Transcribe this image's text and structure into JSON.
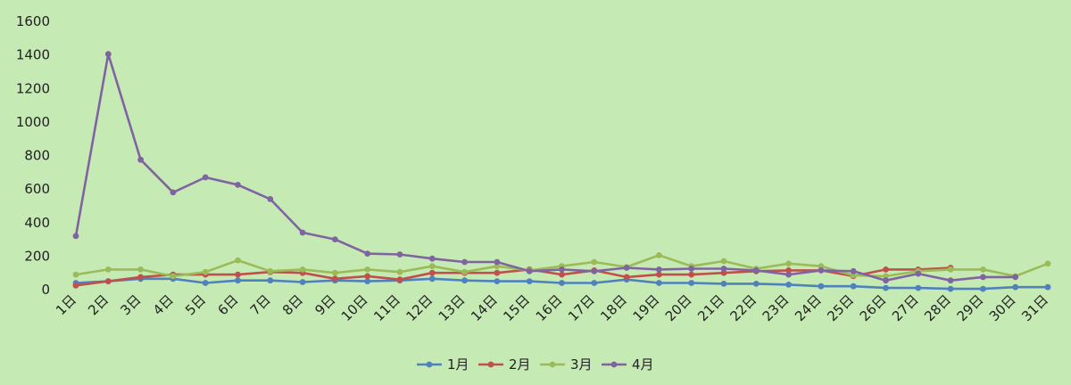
{
  "chart_data": {
    "type": "line",
    "title": "",
    "xlabel": "",
    "ylabel": "",
    "ylim": [
      0,
      1600
    ],
    "yticks": [
      0,
      200,
      400,
      600,
      800,
      1000,
      1200,
      1400,
      1600
    ],
    "grid": false,
    "legend_position": "bottom",
    "categories": [
      "1日",
      "2日",
      "3日",
      "4日",
      "5日",
      "6日",
      "7日",
      "8日",
      "9日",
      "10日",
      "11日",
      "12日",
      "13日",
      "14日",
      "15日",
      "16日",
      "17日",
      "18日",
      "19日",
      "20日",
      "21日",
      "22日",
      "23日",
      "24日",
      "25日",
      "26日",
      "27日",
      "28日",
      "29日",
      "30日",
      "31日"
    ],
    "series": [
      {
        "name": "1月",
        "color": "#4f81bd",
        "values": [
          40,
          50,
          65,
          65,
          40,
          55,
          55,
          45,
          55,
          50,
          55,
          65,
          55,
          50,
          50,
          40,
          40,
          60,
          40,
          40,
          35,
          35,
          30,
          20,
          20,
          10,
          10,
          5,
          5,
          15,
          15
        ]
      },
      {
        "name": "2月",
        "color": "#c0504d",
        "values": [
          25,
          50,
          75,
          90,
          90,
          90,
          105,
          100,
          65,
          80,
          60,
          100,
          100,
          100,
          120,
          90,
          115,
          75,
          90,
          90,
          100,
          110,
          115,
          115,
          80,
          120,
          120,
          130,
          null,
          null,
          null
        ]
      },
      {
        "name": "3月",
        "color": "#9bbb59",
        "values": [
          90,
          120,
          120,
          80,
          105,
          175,
          110,
          120,
          100,
          120,
          105,
          140,
          105,
          140,
          115,
          140,
          165,
          135,
          205,
          140,
          170,
          125,
          155,
          140,
          85,
          80,
          110,
          120,
          120,
          80,
          155
        ]
      },
      {
        "name": "4月",
        "color": "#8064a2",
        "values": [
          320,
          1405,
          775,
          580,
          670,
          625,
          540,
          340,
          300,
          215,
          210,
          185,
          165,
          165,
          110,
          120,
          110,
          130,
          120,
          125,
          125,
          115,
          90,
          115,
          110,
          55,
          95,
          55,
          75,
          75,
          null
        ]
      }
    ]
  }
}
